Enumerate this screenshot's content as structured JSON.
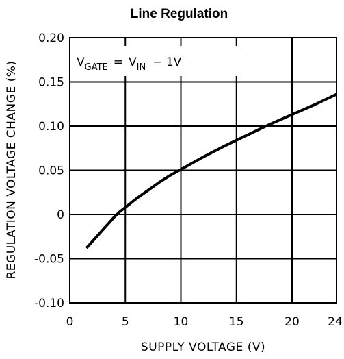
{
  "chart_data": {
    "type": "line",
    "title": "Line Regulation",
    "xlabel": "SUPPLY VOLTAGE (V)",
    "ylabel": "REGULATION VOLTAGE CHANGE (%)",
    "xlim": [
      0,
      24
    ],
    "ylim": [
      -0.1,
      0.2
    ],
    "x_ticks": [
      0,
      5,
      10,
      15,
      20,
      24
    ],
    "x_tick_labels": [
      "0",
      "5",
      "10",
      "15",
      "20",
      "24"
    ],
    "y_ticks": [
      0.2,
      0.15,
      0.1,
      0.05,
      0,
      -0.05,
      -0.1
    ],
    "y_tick_labels": [
      "0.20",
      "0.15",
      "0.10",
      "0.05",
      "0",
      "-0.05",
      "-0.10"
    ],
    "grid": true,
    "annotation": {
      "v_label": "V",
      "v_sub": "GATE",
      "equals": "=",
      "vin_label": "V",
      "vin_sub": "IN",
      "rest": "−  1V"
    },
    "series": [
      {
        "x": [
          1.5,
          2.0,
          2.5,
          3.0,
          3.5,
          4.0,
          4.5,
          5.0,
          6.0,
          7.0,
          8.0,
          9.0,
          10.0,
          12.0,
          14.0,
          16.0,
          18.0,
          20.0,
          22.0,
          24.0
        ],
        "y": [
          -0.038,
          -0.031,
          -0.024,
          -0.017,
          -0.01,
          -0.003,
          0.003,
          0.008,
          0.018,
          0.027,
          0.036,
          0.044,
          0.051,
          0.065,
          0.078,
          0.09,
          0.102,
          0.113,
          0.124,
          0.136
        ]
      }
    ]
  }
}
